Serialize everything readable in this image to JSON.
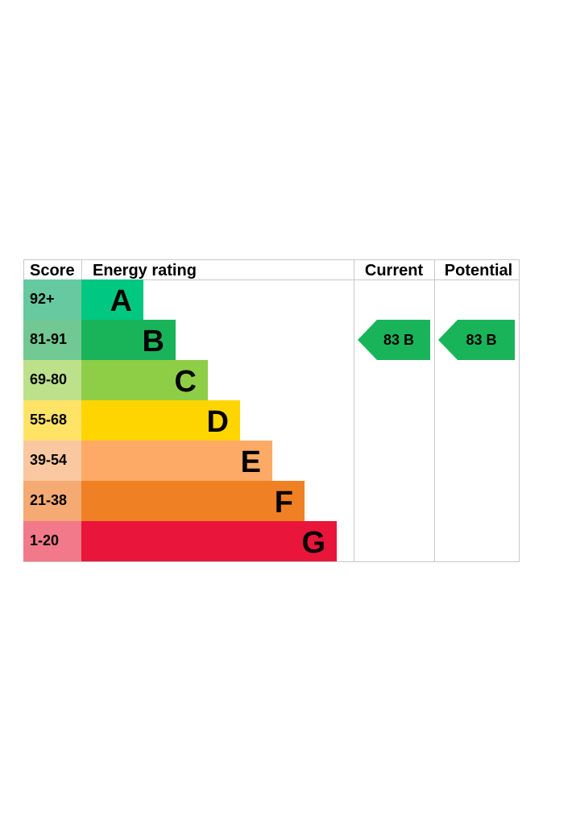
{
  "chart_data": {
    "type": "table",
    "headers": {
      "score": "Score",
      "rating": "Energy rating",
      "current": "Current",
      "potential": "Potential"
    },
    "bands": [
      {
        "range": "92+",
        "letter": "A",
        "score_color": "#66c9a0",
        "bar_color": "#00c781"
      },
      {
        "range": "81-91",
        "letter": "B",
        "score_color": "#72c893",
        "bar_color": "#19b459"
      },
      {
        "range": "69-80",
        "letter": "C",
        "score_color": "#bde18b",
        "bar_color": "#8dce46"
      },
      {
        "range": "55-68",
        "letter": "D",
        "score_color": "#ffe367",
        "bar_color": "#ffd500"
      },
      {
        "range": "39-54",
        "letter": "E",
        "score_color": "#fac8a0",
        "bar_color": "#fcaa65"
      },
      {
        "range": "21-38",
        "letter": "F",
        "score_color": "#f4aa72",
        "bar_color": "#ef8023"
      },
      {
        "range": "1-20",
        "letter": "G",
        "score_color": "#f2798a",
        "bar_color": "#e9153b"
      }
    ],
    "current": {
      "score": 83,
      "letter": "B",
      "label": "83  B",
      "color": "#19b459"
    },
    "potential": {
      "score": 83,
      "letter": "B",
      "label": "83  B",
      "color": "#19b459"
    }
  }
}
